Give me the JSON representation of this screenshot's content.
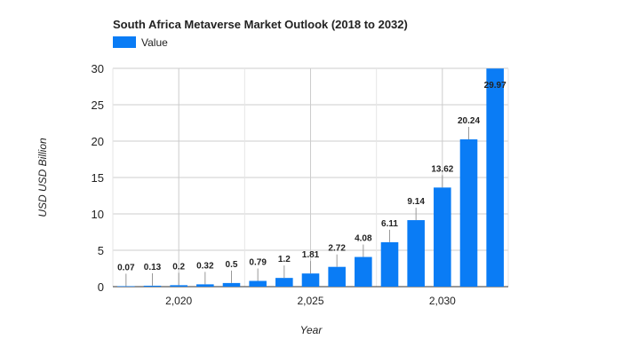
{
  "chart_data": {
    "type": "bar",
    "title": "South Africa Metaverse Market Outlook (2018 to 2032)",
    "xlabel": "Year",
    "ylabel": "USD USD Billion",
    "legend": {
      "position": "top-left",
      "entries": [
        "Value"
      ]
    },
    "grid": true,
    "x": [
      2018,
      2019,
      2020,
      2021,
      2022,
      2023,
      2024,
      2025,
      2026,
      2027,
      2028,
      2029,
      2030,
      2031,
      2032
    ],
    "x_tick_labels": [
      {
        "value": 2020,
        "label": "2,020"
      },
      {
        "value": 2025,
        "label": "2,025"
      },
      {
        "value": 2030,
        "label": "2,030"
      }
    ],
    "series": [
      {
        "name": "Value",
        "values": [
          0.07,
          0.13,
          0.2,
          0.32,
          0.5,
          0.79,
          1.2,
          1.81,
          2.72,
          4.08,
          6.11,
          9.14,
          13.62,
          20.24,
          29.97
        ],
        "labels": [
          "0.07",
          "0.13",
          "0.2",
          "0.32",
          "0.5",
          "0.79",
          "1.2",
          "1.81",
          "2.72",
          "4.08",
          "6.11",
          "9.14",
          "13.62",
          "20.24",
          "29.97"
        ]
      }
    ],
    "ylim": [
      0,
      30
    ],
    "y_ticks": [
      0,
      5,
      10,
      15,
      20,
      25,
      30
    ],
    "xlim": [
      2017.5,
      2032.5
    ],
    "x_minor_gridlines": [
      2017.5,
      2022.5,
      2027.5,
      2032.5
    ]
  },
  "colors": {
    "bar": "#0a7cf5",
    "grid": "#cccccc",
    "axis": "#333333",
    "text": "#222222",
    "label_line": "#999999"
  }
}
